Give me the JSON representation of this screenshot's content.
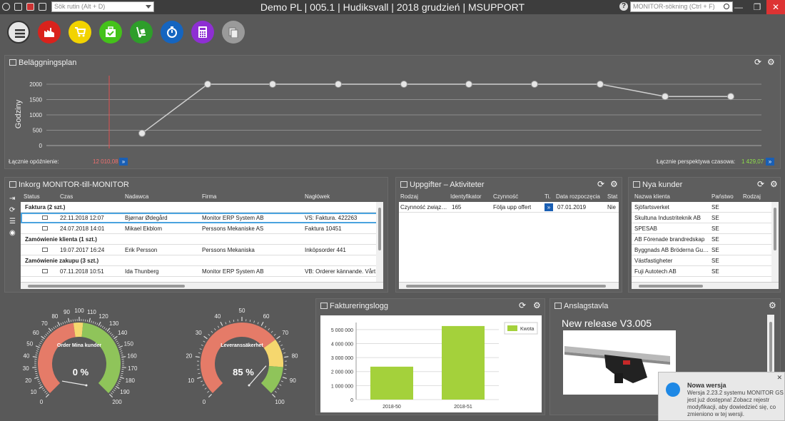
{
  "titlebar": {
    "title": "Demo PL | 005.1 | Hudiksvall | 2018 grudzień | MSUPPORT",
    "quick_search_placeholder": "Sök rutin (Alt + D)",
    "monitor_search_placeholder": "MONITOR-sökning (Ctrl + F)",
    "help": "?",
    "minimize": "—",
    "restore": "❐",
    "close": "✕"
  },
  "toolbar": {
    "colors": [
      "#e6e6e6",
      "#d9221c",
      "#f2d300",
      "#44c21a",
      "#2e9e2a",
      "#1565c0",
      "#8e2fd3",
      "#9a9a9a"
    ]
  },
  "belaggning": {
    "title": "Beläggningsplan",
    "ylabel": "Godziny",
    "left_label": "Łącznie opóźnienie:",
    "left_value": "12 010,08",
    "right_label": "Łącznie perspektywa czasowa:",
    "right_value": "1 429,07",
    "arrow": "»"
  },
  "chart_data": [
    {
      "type": "line",
      "ylabel": "Godziny",
      "ylim": [
        0,
        2000
      ],
      "yticks": [
        0,
        500,
        1000,
        1500,
        2000
      ],
      "grid": true,
      "values": [
        400,
        2000,
        2000,
        2000,
        2000,
        2000,
        2000,
        2000,
        1600,
        1600
      ]
    },
    {
      "type": "bar",
      "title": "Faktureringslogg",
      "categories": [
        "2018-50",
        "2018-51"
      ],
      "series": [
        {
          "name": "Kwota",
          "values": [
            2350000,
            5250000
          ]
        }
      ],
      "ylim": [
        0,
        5500000
      ],
      "yticks": [
        "0",
        "1 000 000",
        "2 000 000",
        "3 000 000",
        "4 000 000",
        "5 000 000"
      ],
      "legend": "top-right",
      "color": "#a4d13b"
    }
  ],
  "inkorg": {
    "title": "Inkorg MONITOR-till-MONITOR",
    "columns": [
      "Status",
      "Czas",
      "Nadawca",
      "Firma",
      "Nagłówek"
    ],
    "groups": [
      {
        "label": "Faktura (2 szt.)",
        "rows": [
          {
            "czas": "22.11.2018 12:07",
            "nadawca": "Bjørnar Ødegård",
            "firma": "Monitor ERP System AB",
            "naglowek": "VS: Faktura. 422263",
            "selected": true
          },
          {
            "czas": "24.07.2018 14:01",
            "nadawca": "Mikael Ekblom",
            "firma": "Perssons Mekaniske AS",
            "naglowek": "Faktura 10451",
            "selected": false
          }
        ]
      },
      {
        "label": "Zamówienie klienta (1 szt.)",
        "rows": [
          {
            "czas": "19.07.2017 16:24",
            "nadawca": "Erik Persson",
            "firma": "Perssons Mekaniska",
            "naglowek": "Inköpsorder 441",
            "selected": false
          }
        ]
      },
      {
        "label": "Zamówienie zakupu (3 szt.)",
        "rows": [
          {
            "czas": "07.11.2018 10:51",
            "nadawca": "Ida Thunberg",
            "firma": "Monitor ERP System AB",
            "naglowek": "VB: Orderer kännande. Vårt o",
            "selected": false
          }
        ]
      }
    ]
  },
  "uppgifter": {
    "title": "Uppgifter – Aktiviteter",
    "columns": [
      "Rodzaj",
      "Identyfikator",
      "Czynność",
      "Ti.",
      "Data rozpoczęcia",
      "Stat"
    ],
    "rows": [
      {
        "rodzaj": "Czynność związ…",
        "id": "165",
        "czynnosc": "Följa upp offert",
        "data": "07.01.2019",
        "stat": "Nie"
      }
    ]
  },
  "nya_kunder": {
    "title": "Nya kunder",
    "columns": [
      "Nazwa klienta",
      "Państwo",
      "Rodzaj"
    ],
    "rows": [
      {
        "name": "Sjöfartsverket",
        "country": "SE"
      },
      {
        "name": "Skultuna Industriteknik AB",
        "country": "SE"
      },
      {
        "name": "SPESAB",
        "country": "SE"
      },
      {
        "name": "AB Förenade brandredskap",
        "country": "SE"
      },
      {
        "name": "Byggnads AB Bröderna Gu…",
        "country": "SE"
      },
      {
        "name": "Västfastigheter",
        "country": "SE"
      },
      {
        "name": "Fuji Autotech AB",
        "country": "SE"
      }
    ]
  },
  "gauges": [
    {
      "title": "Order Mina kunder",
      "value_label": "0 %",
      "value": 0,
      "min": 0,
      "max": 200,
      "ticks": [
        "0",
        "10",
        "20",
        "30",
        "40",
        "50",
        "60",
        "70",
        "80",
        "90",
        "100",
        "110",
        "120",
        "130",
        "140",
        "150",
        "160",
        "170",
        "180",
        "190",
        "200"
      ]
    },
    {
      "title": "Leveranssäkerhet",
      "value_label": "85 %",
      "value": 85,
      "min": 0,
      "max": 100,
      "ticks": [
        "0",
        "10",
        "20",
        "30",
        "40",
        "50",
        "60",
        "70",
        "80",
        "90",
        "100"
      ]
    }
  ],
  "fakturering": {
    "title": "Faktureringslogg",
    "legend": "Kwota"
  },
  "anslag": {
    "title": "Anslagstavla",
    "headline": "New release V3.005"
  },
  "toast": {
    "title": "Nowa wersja",
    "body": "Wersja 2.23.2 systemu MONITOR GS jest już dostępna! Zobacz rejestr modyfikacji, aby dowiedzieć się, co zmieniono w tej wersji.",
    "close": "✕"
  }
}
